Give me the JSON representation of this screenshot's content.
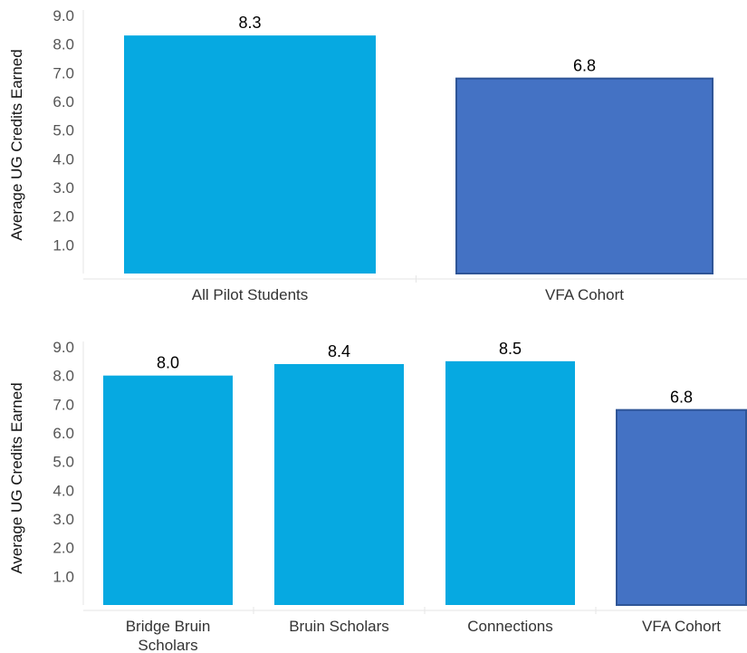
{
  "chart_data": [
    {
      "type": "bar",
      "categories": [
        "All Pilot Students",
        "VFA Cohort"
      ],
      "values": [
        8.3,
        6.8
      ],
      "value_labels": [
        "8.3",
        "6.8"
      ],
      "colors": [
        "#06a9e1",
        "#4472c4"
      ],
      "ylabel": "Average UG Credits Earned",
      "yticks": [
        "1.0",
        "2.0",
        "3.0",
        "4.0",
        "5.0",
        "6.0",
        "7.0",
        "8.0",
        "9.0"
      ],
      "ylim": [
        0,
        9
      ],
      "grid": false
    },
    {
      "type": "bar",
      "categories": [
        [
          "Bridge Bruin",
          "Scholars"
        ],
        [
          "Bruin Scholars"
        ],
        [
          "Connections"
        ],
        [
          "VFA Cohort"
        ]
      ],
      "values": [
        8.0,
        8.4,
        8.5,
        6.8
      ],
      "value_labels": [
        "8.0",
        "8.4",
        "8.5",
        "6.8"
      ],
      "colors": [
        "#06a9e1",
        "#06a9e1",
        "#06a9e1",
        "#4472c4"
      ],
      "ylabel": "Average UG Credits Earned",
      "yticks": [
        "1.0",
        "2.0",
        "3.0",
        "4.0",
        "5.0",
        "6.0",
        "7.0",
        "8.0",
        "9.0"
      ],
      "ylim": [
        0,
        9
      ],
      "grid": false
    }
  ]
}
